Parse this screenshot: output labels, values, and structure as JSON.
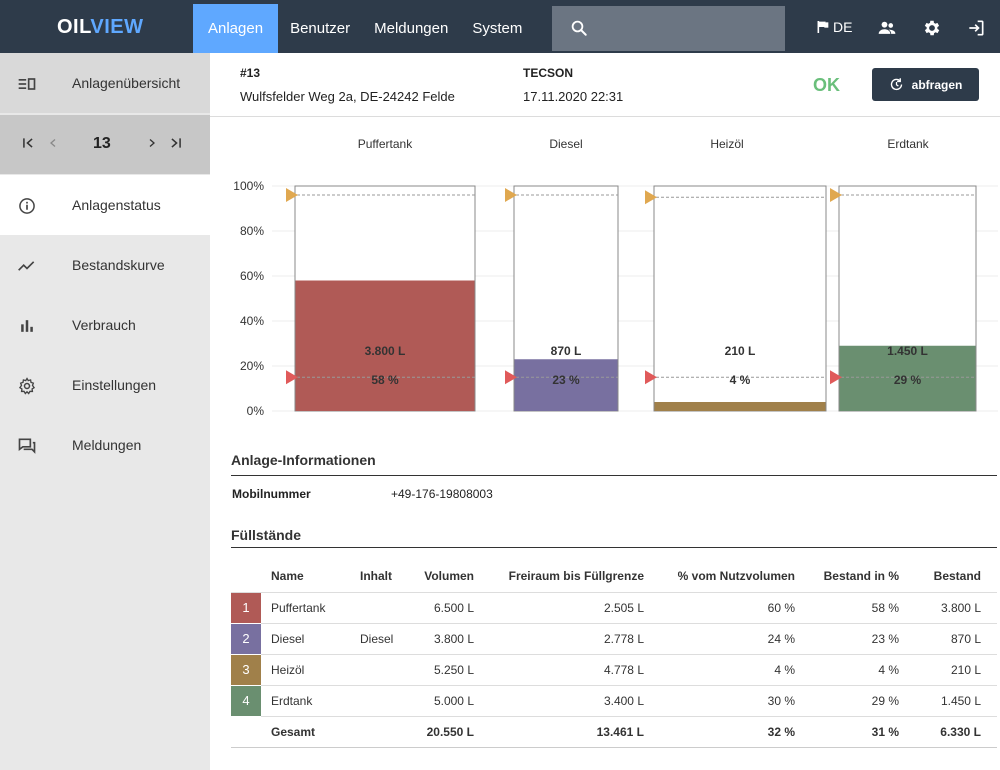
{
  "app": {
    "logo_part1": "OIL",
    "logo_part2": "VIEW"
  },
  "nav": [
    {
      "label": "Anlagen",
      "active": true
    },
    {
      "label": "Benutzer"
    },
    {
      "label": "Meldungen"
    },
    {
      "label": "System"
    }
  ],
  "search": {
    "placeholder": ""
  },
  "toolbar": {
    "language": "DE"
  },
  "sidebar": {
    "overview": "Anlagenübersicht",
    "pager_value": "13",
    "items": [
      {
        "label": "Anlagenstatus",
        "icon": "info-icon",
        "active": true
      },
      {
        "label": "Bestandskurve",
        "icon": "trend-icon"
      },
      {
        "label": "Verbrauch",
        "icon": "bar-chart-icon"
      },
      {
        "label": "Einstellungen",
        "icon": "gear-icon"
      },
      {
        "label": "Meldungen",
        "icon": "messages-icon"
      }
    ]
  },
  "header": {
    "id": "#13",
    "address": "Wulfsfelder Weg 2a, DE-24242 Felde",
    "brand": "TECSON",
    "datetime": "17.11.2020 22:31",
    "status": "OK",
    "query_button": "abfragen"
  },
  "chart_data": {
    "type": "bar",
    "categories": [
      "Puffertank",
      "Diesel",
      "Heizöl",
      "Erdtank"
    ],
    "values": [
      58,
      23,
      4,
      29
    ],
    "volume_labels": [
      "3.800 L",
      "870 L",
      "210 L",
      "1.450 L"
    ],
    "percent_labels": [
      "58 %",
      "23 %",
      "4 %",
      "29 %"
    ],
    "colors": [
      "#b05a56",
      "#7870a0",
      "#a0804a",
      "#6a8f70"
    ],
    "upper_limits": [
      96,
      96,
      95,
      96
    ],
    "lower_limits": [
      15,
      15,
      15,
      15
    ],
    "upper_marker_color": "#e0a850",
    "lower_marker_color": "#e05a5a",
    "ylim": [
      0,
      100
    ],
    "yticks": [
      "0%",
      "20%",
      "40%",
      "60%",
      "80%",
      "100%"
    ],
    "grid": true
  },
  "info": {
    "title": "Anlage-Informationen",
    "mobile_label": "Mobilnummer",
    "mobile_value": "+49-176-19808003"
  },
  "levels": {
    "title": "Füllstände",
    "columns": [
      "Name",
      "Inhalt",
      "Volumen",
      "Freiraum bis Füllgrenze",
      "% vom Nutzvolumen",
      "Bestand in %",
      "Bestand"
    ],
    "rows": [
      {
        "num": "1",
        "color": "#b05a56",
        "name": "Puffertank",
        "content": "",
        "volume": "6.500 L",
        "free": "2.505 L",
        "usable": "60 %",
        "pct": "58 %",
        "stock": "3.800 L"
      },
      {
        "num": "2",
        "color": "#7870a0",
        "name": "Diesel",
        "content": "Diesel",
        "volume": "3.800 L",
        "free": "2.778 L",
        "usable": "24 %",
        "pct": "23 %",
        "stock": "870 L"
      },
      {
        "num": "3",
        "color": "#a0804a",
        "name": "Heizöl",
        "content": "",
        "volume": "5.250 L",
        "free": "4.778 L",
        "usable": "4 %",
        "pct": "4 %",
        "stock": "210 L"
      },
      {
        "num": "4",
        "color": "#6a8f70",
        "name": "Erdtank",
        "content": "",
        "volume": "5.000 L",
        "free": "3.400 L",
        "usable": "30 %",
        "pct": "29 %",
        "stock": "1.450 L"
      }
    ],
    "total": {
      "label": "Gesamt",
      "volume": "20.550 L",
      "free": "13.461 L",
      "usable": "32 %",
      "pct": "31 %",
      "stock": "6.330 L"
    }
  }
}
